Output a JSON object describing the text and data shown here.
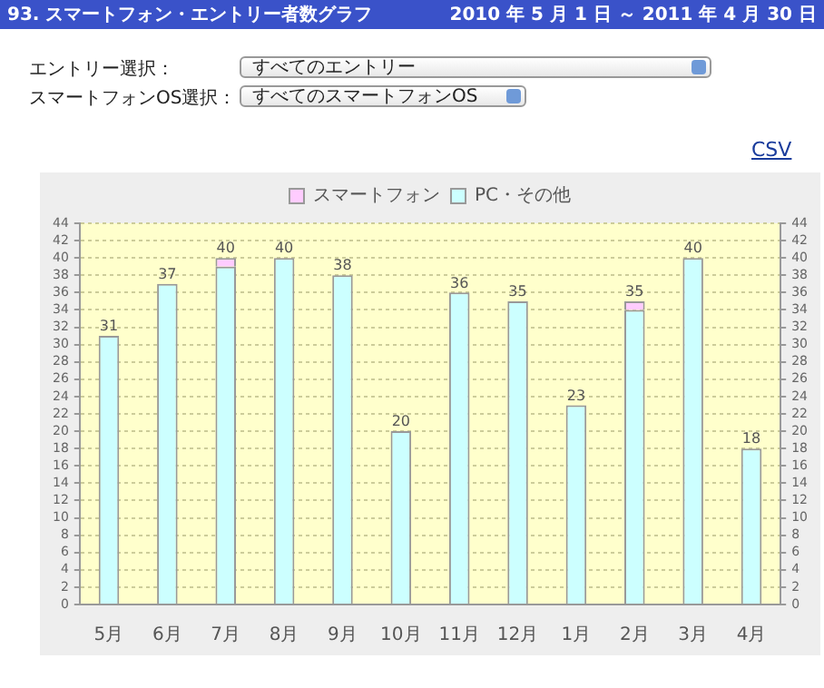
{
  "chart_data": {
    "type": "bar",
    "title": "93. スマートフォン・エントリー者数グラフ",
    "subtitle": "2010 年 5 月 1 日 ～ 2011 年 4 月 30 日",
    "annotations": [
      "エントリー選択：",
      "すべてのエントリー",
      "スマートフォンOS選択：",
      "すべてのスマートフォンOS",
      "CSV"
    ],
    "categories": [
      "5月",
      "6月",
      "7月",
      "8月",
      "9月",
      "10月",
      "11月",
      "12月",
      "1月",
      "2月",
      "3月",
      "4月"
    ],
    "stacked": true,
    "series": [
      {
        "name": "PC・その他",
        "color": "#ccffff",
        "values": [
          31,
          37,
          39,
          40,
          38,
          20,
          36,
          35,
          23,
          34,
          40,
          18
        ]
      },
      {
        "name": "スマートフォン",
        "color": "#ffccff",
        "values": [
          0,
          0,
          1,
          0,
          0,
          0,
          0,
          0,
          0,
          1,
          0,
          0
        ]
      }
    ],
    "totals": [
      "31",
      "37",
      "40",
      "40",
      "38",
      "20",
      "36",
      "35",
      "23",
      "35",
      "40",
      "18"
    ],
    "ylim": [
      0,
      44
    ],
    "yticks": [
      0,
      2,
      4,
      6,
      8,
      10,
      12,
      14,
      16,
      18,
      20,
      22,
      24,
      26,
      28,
      30,
      32,
      34,
      36,
      38,
      40,
      42,
      44
    ],
    "y2lim": [
      0,
      44
    ],
    "y2ticks": [
      0,
      2,
      4,
      6,
      8,
      10,
      12,
      14,
      16,
      18,
      20,
      22,
      24,
      26,
      28,
      30,
      32,
      34,
      36,
      38,
      40,
      42,
      44
    ],
    "grid": "y",
    "legend": "top"
  }
}
